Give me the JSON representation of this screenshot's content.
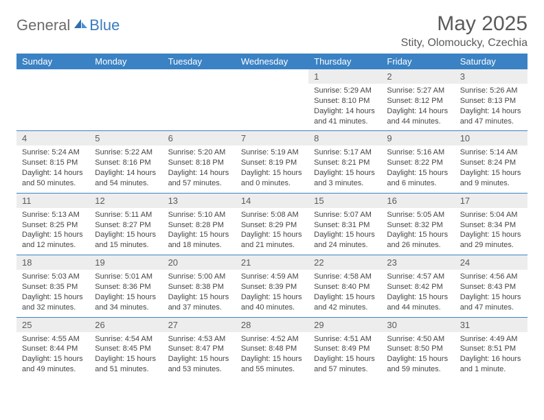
{
  "brand": {
    "general": "General",
    "blue": "Blue"
  },
  "title": "May 2025",
  "location": "Stity, Olomoucky, Czechia",
  "colors": {
    "header_bg": "#3a82c4",
    "header_text": "#ffffff",
    "daynum_bg": "#ededed",
    "rule": "#3a82c4",
    "text": "#444444",
    "brand_gray": "#6b6b6b",
    "brand_blue": "#3a7bbf"
  },
  "day_labels": [
    "Sunday",
    "Monday",
    "Tuesday",
    "Wednesday",
    "Thursday",
    "Friday",
    "Saturday"
  ],
  "weeks": [
    [
      null,
      null,
      null,
      null,
      {
        "n": "1",
        "sr": "5:29 AM",
        "ss": "8:10 PM",
        "dl": "14 hours and 41 minutes."
      },
      {
        "n": "2",
        "sr": "5:27 AM",
        "ss": "8:12 PM",
        "dl": "14 hours and 44 minutes."
      },
      {
        "n": "3",
        "sr": "5:26 AM",
        "ss": "8:13 PM",
        "dl": "14 hours and 47 minutes."
      }
    ],
    [
      {
        "n": "4",
        "sr": "5:24 AM",
        "ss": "8:15 PM",
        "dl": "14 hours and 50 minutes."
      },
      {
        "n": "5",
        "sr": "5:22 AM",
        "ss": "8:16 PM",
        "dl": "14 hours and 54 minutes."
      },
      {
        "n": "6",
        "sr": "5:20 AM",
        "ss": "8:18 PM",
        "dl": "14 hours and 57 minutes."
      },
      {
        "n": "7",
        "sr": "5:19 AM",
        "ss": "8:19 PM",
        "dl": "15 hours and 0 minutes."
      },
      {
        "n": "8",
        "sr": "5:17 AM",
        "ss": "8:21 PM",
        "dl": "15 hours and 3 minutes."
      },
      {
        "n": "9",
        "sr": "5:16 AM",
        "ss": "8:22 PM",
        "dl": "15 hours and 6 minutes."
      },
      {
        "n": "10",
        "sr": "5:14 AM",
        "ss": "8:24 PM",
        "dl": "15 hours and 9 minutes."
      }
    ],
    [
      {
        "n": "11",
        "sr": "5:13 AM",
        "ss": "8:25 PM",
        "dl": "15 hours and 12 minutes."
      },
      {
        "n": "12",
        "sr": "5:11 AM",
        "ss": "8:27 PM",
        "dl": "15 hours and 15 minutes."
      },
      {
        "n": "13",
        "sr": "5:10 AM",
        "ss": "8:28 PM",
        "dl": "15 hours and 18 minutes."
      },
      {
        "n": "14",
        "sr": "5:08 AM",
        "ss": "8:29 PM",
        "dl": "15 hours and 21 minutes."
      },
      {
        "n": "15",
        "sr": "5:07 AM",
        "ss": "8:31 PM",
        "dl": "15 hours and 24 minutes."
      },
      {
        "n": "16",
        "sr": "5:05 AM",
        "ss": "8:32 PM",
        "dl": "15 hours and 26 minutes."
      },
      {
        "n": "17",
        "sr": "5:04 AM",
        "ss": "8:34 PM",
        "dl": "15 hours and 29 minutes."
      }
    ],
    [
      {
        "n": "18",
        "sr": "5:03 AM",
        "ss": "8:35 PM",
        "dl": "15 hours and 32 minutes."
      },
      {
        "n": "19",
        "sr": "5:01 AM",
        "ss": "8:36 PM",
        "dl": "15 hours and 34 minutes."
      },
      {
        "n": "20",
        "sr": "5:00 AM",
        "ss": "8:38 PM",
        "dl": "15 hours and 37 minutes."
      },
      {
        "n": "21",
        "sr": "4:59 AM",
        "ss": "8:39 PM",
        "dl": "15 hours and 40 minutes."
      },
      {
        "n": "22",
        "sr": "4:58 AM",
        "ss": "8:40 PM",
        "dl": "15 hours and 42 minutes."
      },
      {
        "n": "23",
        "sr": "4:57 AM",
        "ss": "8:42 PM",
        "dl": "15 hours and 44 minutes."
      },
      {
        "n": "24",
        "sr": "4:56 AM",
        "ss": "8:43 PM",
        "dl": "15 hours and 47 minutes."
      }
    ],
    [
      {
        "n": "25",
        "sr": "4:55 AM",
        "ss": "8:44 PM",
        "dl": "15 hours and 49 minutes."
      },
      {
        "n": "26",
        "sr": "4:54 AM",
        "ss": "8:45 PM",
        "dl": "15 hours and 51 minutes."
      },
      {
        "n": "27",
        "sr": "4:53 AM",
        "ss": "8:47 PM",
        "dl": "15 hours and 53 minutes."
      },
      {
        "n": "28",
        "sr": "4:52 AM",
        "ss": "8:48 PM",
        "dl": "15 hours and 55 minutes."
      },
      {
        "n": "29",
        "sr": "4:51 AM",
        "ss": "8:49 PM",
        "dl": "15 hours and 57 minutes."
      },
      {
        "n": "30",
        "sr": "4:50 AM",
        "ss": "8:50 PM",
        "dl": "15 hours and 59 minutes."
      },
      {
        "n": "31",
        "sr": "4:49 AM",
        "ss": "8:51 PM",
        "dl": "16 hours and 1 minute."
      }
    ]
  ],
  "labels": {
    "sunrise": "Sunrise: ",
    "sunset": "Sunset: ",
    "daylight": "Daylight: "
  }
}
